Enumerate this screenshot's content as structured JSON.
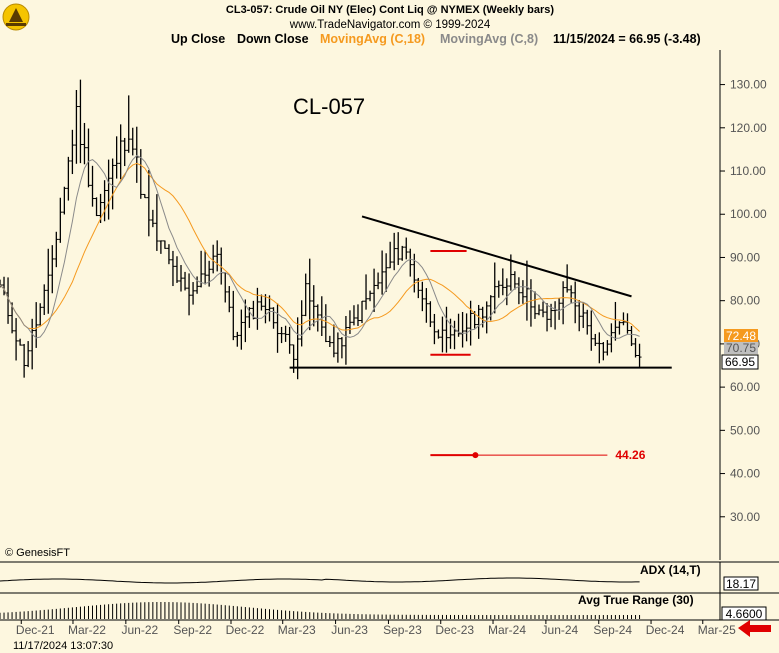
{
  "header": {
    "line1": "CL3-057:  Crude Oil NY (Elec) Cont Liq @ NYMEX  (Weekly bars)",
    "line2": "www.TradeNavigator.com © 1999-2024"
  },
  "legend": {
    "up_close": "Up Close",
    "down_close": "Down Close",
    "ma18": "MovingAvg (C,18)",
    "ma8": "MovingAvg (C,8)",
    "last": "11/15/2024 = 66.95 (-3.48)"
  },
  "colors": {
    "background": "#FDF7DF",
    "bars": "#000000",
    "ma18": "#F59A1F",
    "ma8": "#8A8A8A",
    "red": "#E00000",
    "ma18_badge": "#F59A1F",
    "ma8_badge": "#BFBFBF"
  },
  "annotations": {
    "symbol_label": "CL-057",
    "target_label": "44.26",
    "copyright": "© GenesisFT",
    "timestamp": "11/17/2024 13:07:30"
  },
  "indicators": {
    "adx_label": "ADX (14,T)",
    "adx_value": "18.17",
    "atr_label": "Avg True Range (30)",
    "atr_value": "4.6600"
  },
  "chart_data": {
    "type": "ohlc",
    "title": "CL3-057:  Crude Oil NY (Elec) Cont Liq @ NYMEX  (Weekly bars)",
    "ylim": [
      20,
      138
    ],
    "y_ticks": [
      "130.00",
      "120.00",
      "110.00",
      "100.00",
      "90.00",
      "80.00",
      "70.00",
      "60.00",
      "50.00",
      "40.00",
      "30.00"
    ],
    "x_ticks": [
      "Dec-21",
      "Mar-22",
      "Jun-22",
      "Sep-22",
      "Dec-22",
      "Mar-23",
      "Jun-23",
      "Sep-23",
      "Dec-23",
      "Mar-24",
      "Jun-24",
      "Sep-24",
      "Dec-24",
      "Mar-25"
    ],
    "x_range": [
      "2021-10-25",
      "2025-03-31"
    ],
    "last_close": "66.95",
    "ma18_last": "72.48",
    "ma8_last": "70.75",
    "key_points": [
      {
        "date": "2021-10-25",
        "close": 83.0
      },
      {
        "date": "2021-12-06",
        "close": 66.0
      },
      {
        "date": "2022-01-17",
        "close": 84.0
      },
      {
        "date": "2022-03-07",
        "close": 123.0
      },
      {
        "date": "2022-04-11",
        "close": 100.0
      },
      {
        "date": "2022-06-06",
        "close": 120.0
      },
      {
        "date": "2022-07-11",
        "close": 98.0
      },
      {
        "date": "2022-09-19",
        "close": 80.0
      },
      {
        "date": "2022-11-07",
        "close": 92.0
      },
      {
        "date": "2022-12-05",
        "close": 72.0
      },
      {
        "date": "2023-01-23",
        "close": 80.0
      },
      {
        "date": "2023-03-20",
        "close": 68.0
      },
      {
        "date": "2023-04-10",
        "close": 82.0
      },
      {
        "date": "2023-05-29",
        "close": 68.0
      },
      {
        "date": "2023-07-24",
        "close": 80.0
      },
      {
        "date": "2023-09-25",
        "close": 93.0
      },
      {
        "date": "2023-11-13",
        "close": 76.0
      },
      {
        "date": "2023-12-11",
        "close": 70.0
      },
      {
        "date": "2024-02-05",
        "close": 77.0
      },
      {
        "date": "2024-04-01",
        "close": 86.0
      },
      {
        "date": "2024-06-03",
        "close": 75.0
      },
      {
        "date": "2024-07-08",
        "close": 83.0
      },
      {
        "date": "2024-09-09",
        "close": 67.0
      },
      {
        "date": "2024-10-07",
        "close": 76.0
      },
      {
        "date": "2024-11-11",
        "close": 66.95
      }
    ],
    "trendlines": [
      {
        "name": "descending-resistance",
        "from": {
          "date": "2023-07-17",
          "value": 99.5
        },
        "to": {
          "date": "2024-10-28",
          "value": 81.0
        }
      },
      {
        "name": "horizontal-support",
        "from": {
          "date": "2023-03-13",
          "value": 64.5
        },
        "to": {
          "date": "2025-01-06",
          "value": 64.5
        }
      }
    ],
    "red_levels": [
      {
        "from": {
          "date": "2023-11-13",
          "value": 91.5
        },
        "to": {
          "date": "2024-01-15",
          "value": 91.5
        }
      },
      {
        "from": {
          "date": "2023-11-13",
          "value": 67.5
        },
        "to": {
          "date": "2024-01-22",
          "value": 67.5
        }
      },
      {
        "from": {
          "date": "2023-11-13",
          "value": 44.26
        },
        "to": {
          "date": "2024-09-16",
          "value": 44.26
        },
        "label": "44.26"
      }
    ],
    "grid": false,
    "legend": "top"
  }
}
